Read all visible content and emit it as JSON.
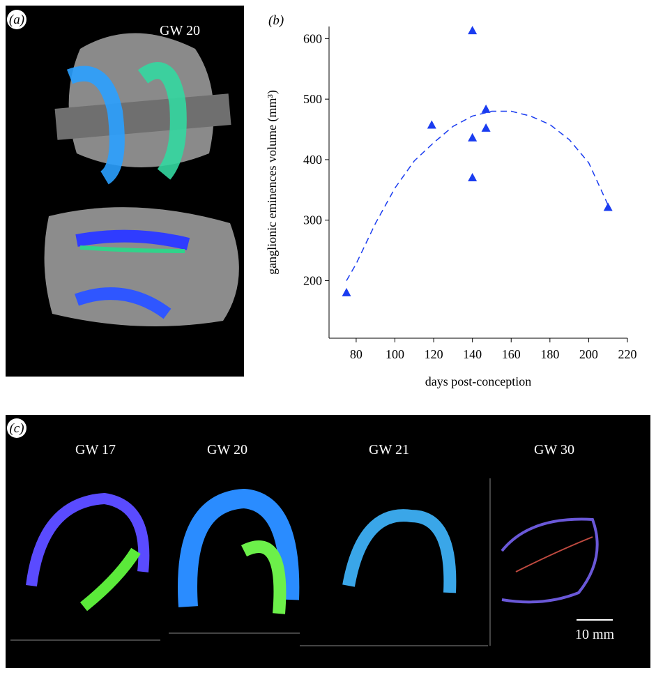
{
  "panel_a": {
    "label": "(a)",
    "caption": "GW 20"
  },
  "chart_data": {
    "type": "scatter",
    "panel_label": "(b)",
    "x_label": "days post-conception",
    "y_label": "ganglionic eminences volume (mm³)",
    "xlim": [
      66,
      220
    ],
    "xticks": [
      80,
      100,
      120,
      140,
      160,
      180,
      200,
      220
    ],
    "ylim": [
      105,
      620
    ],
    "yticks": [
      200,
      300,
      400,
      500,
      600
    ],
    "series": [
      {
        "type": "scatter",
        "marker": "triangle",
        "color": "#1a3cf0",
        "x": [
          75,
          119,
          140,
          140,
          140,
          147,
          147,
          210
        ],
        "values": [
          180,
          457,
          613,
          436,
          370,
          483,
          452,
          321
        ]
      },
      {
        "type": "line",
        "dashed": true,
        "color": "#1a3cf0",
        "x": [
          75,
          80,
          90,
          100,
          110,
          120,
          130,
          140,
          150,
          160,
          170,
          180,
          190,
          200,
          210
        ],
        "values": [
          200,
          228,
          295,
          353,
          398,
          428,
          455,
          472,
          480,
          480,
          472,
          458,
          433,
          395,
          325
        ]
      }
    ]
  },
  "panel_c": {
    "label": "(c)",
    "captions": [
      "GW 17",
      "GW 20",
      "GW 21",
      "GW 30"
    ],
    "scale_bar": "10 mm"
  }
}
